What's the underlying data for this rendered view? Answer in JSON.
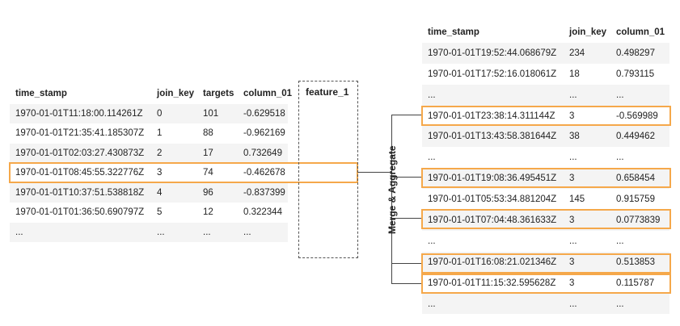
{
  "left_table": {
    "headers": [
      "time_stamp",
      "join_key",
      "targets",
      "column_01"
    ],
    "rows": [
      [
        "1970-01-01T11:18:00.114261Z",
        "0",
        "101",
        "-0.629518"
      ],
      [
        "1970-01-01T21:35:41.185307Z",
        "1",
        "88",
        "-0.962169"
      ],
      [
        "1970-01-01T02:03:27.430873Z",
        "2",
        "17",
        "0.732649"
      ],
      [
        "1970-01-01T08:45:55.322776Z",
        "3",
        "74",
        "-0.462678"
      ],
      [
        "1970-01-01T10:37:51.538818Z",
        "4",
        "96",
        "-0.837399"
      ],
      [
        "1970-01-01T01:36:50.690797Z",
        "5",
        "12",
        "0.322344"
      ],
      [
        "...",
        "...",
        "...",
        "..."
      ]
    ]
  },
  "feature": {
    "label": "feature_1"
  },
  "merge_label": "Merge & Aggregate",
  "right_table": {
    "headers": [
      "time_stamp",
      "join_key",
      "column_01"
    ],
    "rows": [
      [
        "1970-01-01T19:52:44.068679Z",
        "234",
        "0.498297"
      ],
      [
        "1970-01-01T17:52:16.018061Z",
        "18",
        "0.793115"
      ],
      [
        "...",
        "...",
        "..."
      ],
      [
        "1970-01-01T23:38:14.311144Z",
        "3",
        "-0.569989"
      ],
      [
        "1970-01-01T13:43:58.381644Z",
        "38",
        "0.449462"
      ],
      [
        "...",
        "...",
        "..."
      ],
      [
        "1970-01-01T19:08:36.495451Z",
        "3",
        "0.658454"
      ],
      [
        "1970-01-01T05:53:34.881204Z",
        "145",
        "0.915759"
      ],
      [
        "1970-01-01T07:04:48.361633Z",
        "3",
        "0.0773839"
      ],
      [
        "...",
        "...",
        "..."
      ],
      [
        "1970-01-01T16:08:21.021346Z",
        "3",
        "0.513853"
      ],
      [
        "1970-01-01T11:15:32.595628Z",
        "3",
        "0.115787"
      ],
      [
        "...",
        "...",
        "..."
      ]
    ]
  },
  "colors": {
    "highlight": "#f5a84a",
    "shade": "#f4f4f4"
  }
}
